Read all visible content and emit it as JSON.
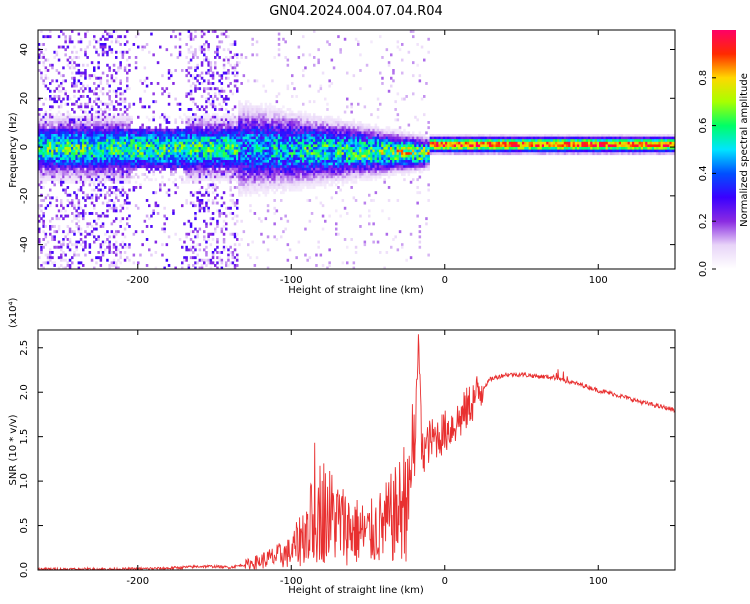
{
  "chart_data": [
    {
      "type": "heatmap",
      "title": "GN04.2024.004.07.04.R04",
      "xlabel": "Height of straight line (km)",
      "ylabel": "Frequency (Hz)",
      "xlim": [
        -265,
        150
      ],
      "ylim": [
        -50,
        48
      ],
      "xticks": [
        -200,
        -100,
        0,
        100
      ],
      "yticks": [
        -40,
        -20,
        0,
        20,
        40
      ],
      "colorbar": {
        "label": "Normalized spectral amplitude",
        "range": [
          0,
          1
        ],
        "ticks": [
          0.0,
          0.2,
          0.4,
          0.6,
          0.8
        ],
        "tick_labels": [
          "0.0",
          "0.2",
          "0.4",
          "0.6",
          "0.8"
        ],
        "colormap": [
          "#ffffff",
          "#e8d4f8",
          "#8a2be2",
          "#3a00ff",
          "#0050ff",
          "#00e5ff",
          "#00ff66",
          "#a8ff00",
          "#ffd800",
          "#ff2a00",
          "#ff0066"
        ]
      },
      "description_bands": [
        {
          "x_range": [
            -265,
            -135
          ],
          "freq_spread": 48,
          "signal": "broadband noise"
        },
        {
          "x_range": [
            -135,
            -10
          ],
          "freq_spread": 8,
          "signal": "narrowing band near 0 Hz"
        },
        {
          "x_range": [
            -10,
            150
          ],
          "freq_spread": 2,
          "signal": "strong line near 1-2 Hz"
        }
      ]
    },
    {
      "type": "line",
      "xlabel": "Height of straight line (km)",
      "ylabel": "SNR (10 * v/v)",
      "y_multiplier": "(x10⁴)",
      "xlim": [
        -265,
        150
      ],
      "ylim": [
        0,
        2.7
      ],
      "xticks": [
        -200,
        -100,
        0,
        100
      ],
      "yticks": [
        0.0,
        0.5,
        1.0,
        1.5,
        2.0,
        2.5
      ],
      "ytick_labels": [
        "0.0",
        "0.5",
        "1.0",
        "1.5",
        "2.0",
        "2.5"
      ],
      "color": "#e83030",
      "series": [
        {
          "x": [
            -265,
            -240,
            -210,
            -180,
            -160,
            -150,
            -140,
            -130,
            -120,
            -110,
            -100,
            -90,
            -80,
            -70,
            -60,
            -50,
            -40,
            -30,
            -20,
            -17,
            -15,
            -10,
            0,
            10,
            20,
            30,
            40,
            50,
            60,
            70,
            75,
            80,
            90,
            100,
            110,
            120,
            130,
            140,
            150
          ],
          "y": [
            0.01,
            0.01,
            0.01,
            0.02,
            0.04,
            0.04,
            0.03,
            0.06,
            0.1,
            0.15,
            0.2,
            0.45,
            0.7,
            0.55,
            0.45,
            0.4,
            0.5,
            0.65,
            1.05,
            2.7,
            1.3,
            1.45,
            1.55,
            1.7,
            1.95,
            2.15,
            2.2,
            2.2,
            2.18,
            2.17,
            2.15,
            2.12,
            2.08,
            2.02,
            1.98,
            1.93,
            1.88,
            1.84,
            1.8
          ]
        }
      ]
    }
  ]
}
